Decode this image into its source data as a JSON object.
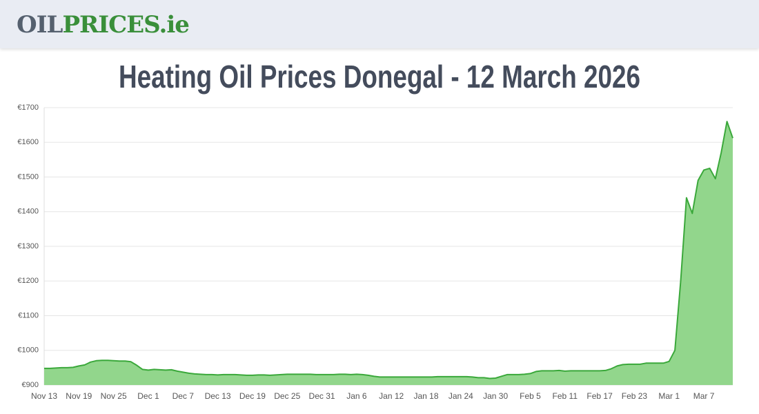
{
  "header": {
    "logo_dark": "OIL",
    "logo_green": "PRICES.ie"
  },
  "chart_data": {
    "type": "area",
    "title": "Heating Oil Prices Donegal - 12 March 2026",
    "categories": [
      "Nov 13",
      null,
      null,
      null,
      null,
      null,
      "Nov 19",
      null,
      null,
      null,
      null,
      null,
      "Nov 25",
      null,
      null,
      null,
      null,
      null,
      "Dec 1",
      null,
      null,
      null,
      null,
      null,
      "Dec 7",
      null,
      null,
      null,
      null,
      null,
      "Dec 13",
      null,
      null,
      null,
      null,
      null,
      "Dec 19",
      null,
      null,
      null,
      null,
      null,
      "Dec 25",
      null,
      null,
      null,
      null,
      null,
      "Dec 31",
      null,
      null,
      null,
      null,
      null,
      "Jan 6",
      null,
      null,
      null,
      null,
      null,
      "Jan 12",
      null,
      null,
      null,
      null,
      null,
      "Jan 18",
      null,
      null,
      null,
      null,
      null,
      "Jan 24",
      null,
      null,
      null,
      null,
      null,
      "Jan 30",
      null,
      null,
      null,
      null,
      null,
      "Feb 5",
      null,
      null,
      null,
      null,
      null,
      "Feb 11",
      null,
      null,
      null,
      null,
      null,
      "Feb 17",
      null,
      null,
      null,
      null,
      null,
      "Feb 23",
      null,
      null,
      null,
      null,
      null,
      "Mar 1",
      null,
      null,
      null,
      null,
      null,
      "Mar 7",
      null,
      null,
      null,
      null,
      null
    ],
    "values": [
      948,
      948,
      949,
      950,
      950,
      951,
      955,
      958,
      966,
      970,
      971,
      971,
      970,
      969,
      969,
      967,
      957,
      945,
      943,
      945,
      944,
      943,
      944,
      940,
      937,
      934,
      932,
      931,
      930,
      930,
      929,
      930,
      930,
      930,
      929,
      928,
      928,
      929,
      929,
      928,
      929,
      930,
      931,
      931,
      931,
      931,
      931,
      930,
      930,
      930,
      930,
      931,
      931,
      930,
      931,
      930,
      928,
      925,
      923,
      923,
      923,
      923,
      923,
      923,
      923,
      923,
      923,
      923,
      924,
      924,
      924,
      924,
      924,
      924,
      923,
      921,
      921,
      919,
      920,
      925,
      930,
      930,
      930,
      931,
      933,
      939,
      941,
      941,
      941,
      942,
      940,
      941,
      941,
      941,
      941,
      941,
      941,
      942,
      947,
      955,
      959,
      960,
      960,
      960,
      963,
      963,
      963,
      963,
      968,
      1000,
      1200,
      1440,
      1395,
      1490,
      1520,
      1525,
      1495,
      1570,
      1660,
      1612
    ],
    "color": "#3aa83a",
    "fill": "#92d68c",
    "ylim": [
      900,
      1700
    ],
    "yticks": [
      {
        "value": 900,
        "label": "€900"
      },
      {
        "value": 1000,
        "label": "€1000"
      },
      {
        "value": 1100,
        "label": "€1100"
      },
      {
        "value": 1200,
        "label": "€1200"
      },
      {
        "value": 1300,
        "label": "€1300"
      },
      {
        "value": 1400,
        "label": "€1400"
      },
      {
        "value": 1500,
        "label": "€1500"
      },
      {
        "value": 1600,
        "label": "€1600"
      },
      {
        "value": 1700,
        "label": "€1700"
      }
    ],
    "grid": true
  }
}
